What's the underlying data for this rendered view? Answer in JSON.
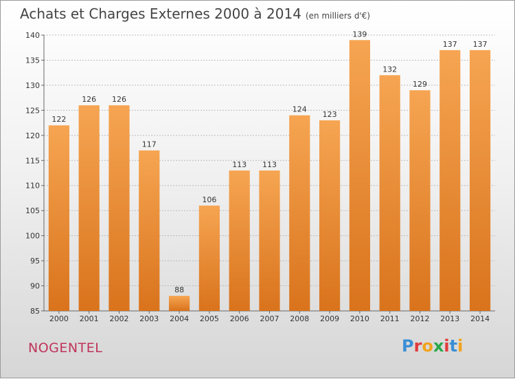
{
  "title": "Achats et Charges Externes 2000 à 2014",
  "unit": "(en milliers d'€)",
  "commune": "NOGENTEL",
  "logo": {
    "letters": [
      "P",
      "r",
      "o",
      "x",
      "i",
      "t",
      "i"
    ],
    "colors": [
      "#3a8fd6",
      "#e23a3a",
      "#f2a21a",
      "#2aa84a",
      "#e23a3a",
      "#3a8fd6",
      "#f2a21a"
    ]
  },
  "colors": {
    "bar_top": "#f6a552",
    "bar_bottom": "#d9731c",
    "grid": "#bbbbbb"
  },
  "chart_data": {
    "type": "bar",
    "title": "Achats et Charges Externes 2000 à 2014",
    "unit": "(en milliers d'€)",
    "categories": [
      "2000",
      "2001",
      "2002",
      "2003",
      "2004",
      "2005",
      "2006",
      "2007",
      "2008",
      "2009",
      "2010",
      "2011",
      "2012",
      "2013",
      "2014"
    ],
    "values": [
      122,
      126,
      126,
      117,
      88,
      106,
      113,
      113,
      124,
      123,
      139,
      132,
      129,
      137,
      137
    ],
    "ylim": [
      85,
      140
    ],
    "yticks": [
      85,
      90,
      95,
      100,
      105,
      110,
      115,
      120,
      125,
      130,
      135,
      140
    ],
    "grid": true,
    "xlabel": "",
    "ylabel": ""
  }
}
